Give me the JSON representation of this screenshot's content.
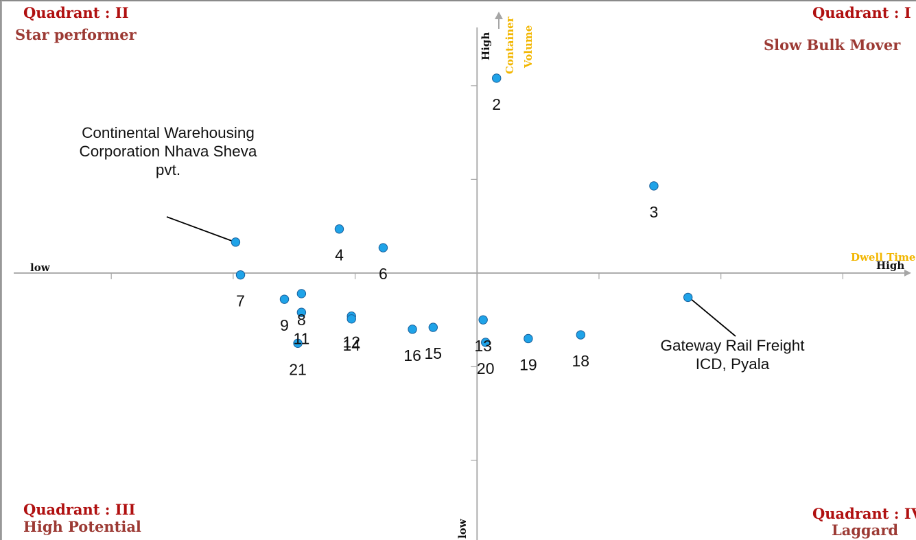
{
  "quadrants": {
    "q1": {
      "title": "Quadrant : I",
      "subtitle": "Slow Bulk Mover"
    },
    "q2": {
      "title": "Quadrant : II",
      "subtitle": "Star performer"
    },
    "q3": {
      "title": "Quadrant : III",
      "subtitle": "High Potential"
    },
    "q4": {
      "title": "Quadrant : IV",
      "subtitle": "Laggard"
    }
  },
  "axes": {
    "x_title": "Dwell Time",
    "x_low": "low",
    "x_high": "High",
    "y_title_line1": "Container",
    "y_title_line2": "Volume",
    "y_high": "High",
    "y_low": "low"
  },
  "annotations": {
    "top_left": "Continental Warehousing Corporation Nhava Sheva pvt.",
    "bottom_right": "Gateway Rail Freight ICD, Pyala"
  },
  "colors": {
    "point_fill": "#1fa3e8",
    "point_stroke": "#1a5f9a",
    "axis": "#a6a6a6",
    "axis_title": "#f2b600",
    "quadrant_title": "#b01010",
    "quadrant_subtitle": "#9c3a34"
  },
  "chart_data": {
    "type": "scatter",
    "xlim": [
      -3.8,
      3.6
    ],
    "ylim": [
      -2.85,
      2.9
    ],
    "grid": false,
    "x_ticks_step": 1,
    "y_ticks_step": 1,
    "points": [
      {
        "label": "2",
        "x": 0.16,
        "y": 2.08
      },
      {
        "label": "3",
        "x": 1.45,
        "y": 0.93
      },
      {
        "label": "4",
        "x": -1.13,
        "y": 0.47
      },
      {
        "label": "6",
        "x": -0.77,
        "y": 0.27
      },
      {
        "label": "7",
        "x": -1.94,
        "y": -0.02
      },
      {
        "label": "8",
        "x": -1.44,
        "y": -0.22
      },
      {
        "label": "9",
        "x": -1.58,
        "y": -0.28
      },
      {
        "label": "11",
        "x": -1.44,
        "y": -0.42
      },
      {
        "label": "12",
        "x": -1.03,
        "y": -0.46
      },
      {
        "label": "14",
        "x": -1.03,
        "y": -0.49
      },
      {
        "label": "16",
        "x": -0.53,
        "y": -0.6
      },
      {
        "label": "15",
        "x": -0.36,
        "y": -0.58
      },
      {
        "label": "13",
        "x": 0.05,
        "y": -0.5
      },
      {
        "label": "20",
        "x": 0.07,
        "y": -0.74
      },
      {
        "label": "19",
        "x": 0.42,
        "y": -0.7
      },
      {
        "label": "18",
        "x": 0.85,
        "y": -0.66
      },
      {
        "label": "21",
        "x": -1.47,
        "y": -0.75
      },
      {
        "label": "",
        "x": -1.98,
        "y": 0.33
      },
      {
        "label": "",
        "x": 1.73,
        "y": -0.26
      }
    ]
  }
}
